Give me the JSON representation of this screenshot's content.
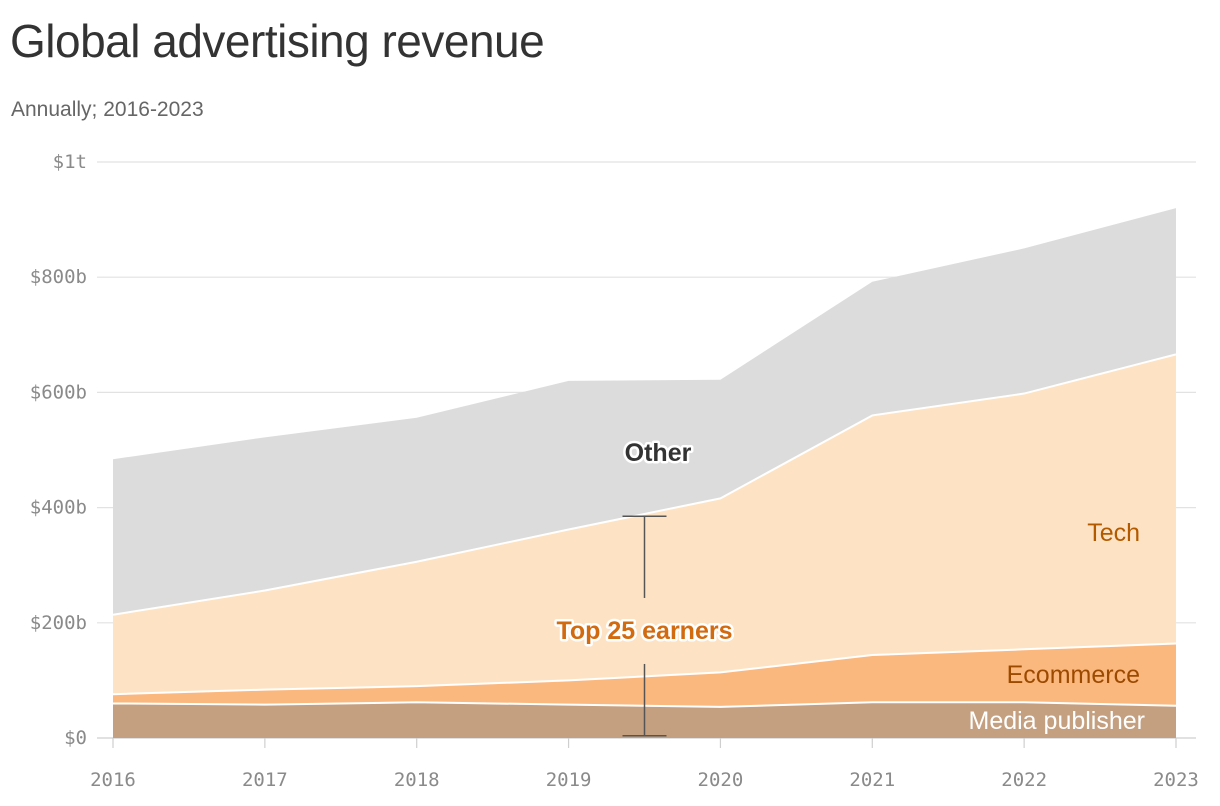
{
  "title": "Global advertising revenue",
  "subtitle": "Annually; 2016-2023",
  "chart_data": {
    "type": "area",
    "stacked": true,
    "x": [
      "2016",
      "2017",
      "2018",
      "2019",
      "2020",
      "2021",
      "2022",
      "2023"
    ],
    "series": [
      {
        "name": "Media publisher",
        "color": "#c4a080",
        "values": [
          60,
          58,
          62,
          58,
          54,
          62,
          62,
          56
        ]
      },
      {
        "name": "Ecommerce",
        "color": "#fbb87e",
        "values": [
          16,
          26,
          28,
          42,
          60,
          82,
          92,
          108
        ]
      },
      {
        "name": "Tech",
        "color": "#fde3c4",
        "values": [
          138,
          172,
          216,
          262,
          302,
          416,
          444,
          502
        ]
      },
      {
        "name": "Other",
        "color": "#dcdcdc",
        "values": [
          270,
          266,
          250,
          258,
          206,
          232,
          252,
          254
        ]
      }
    ],
    "ylim": [
      0,
      1000
    ],
    "yticks": [
      0,
      200,
      400,
      600,
      800,
      1000
    ],
    "ytick_labels": [
      "$0",
      "$200b",
      "$400b",
      "$600b",
      "$800b",
      "$1t"
    ],
    "grid": true,
    "annotation": {
      "label": "Top 25 earners",
      "color": "#d26a0f",
      "x": 2019.5,
      "from": 4,
      "to": 385
    },
    "label_colors": {
      "Media publisher": "#ffffff",
      "Ecommerce": "#9c4a00",
      "Tech": "#b35a00",
      "Other": "#333333"
    }
  }
}
